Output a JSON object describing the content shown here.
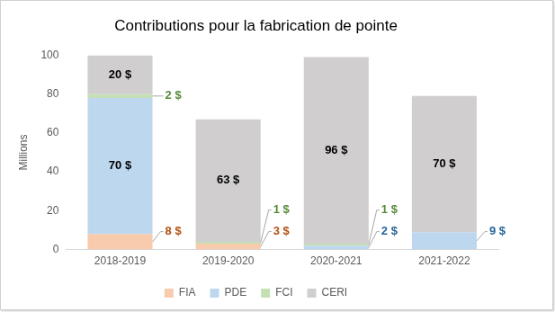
{
  "chart_data": {
    "type": "bar",
    "title": "Contributions pour la fabrication de pointe",
    "y_label": "Millions",
    "categories": [
      "2018-2019",
      "2019-2020",
      "2020-2021",
      "2021-2022"
    ],
    "series": [
      {
        "name": "FIA",
        "color": "#f8cbad",
        "values": [
          8,
          3,
          null,
          null
        ],
        "value_labels": [
          "8 $",
          "3 $",
          null,
          null
        ]
      },
      {
        "name": "PDE",
        "color": "#bdd7ee",
        "values": [
          70,
          null,
          2,
          9
        ],
        "value_labels": [
          "70 $",
          null,
          "2 $",
          "9 $"
        ]
      },
      {
        "name": "FCI",
        "color": "#c5e0b4",
        "values": [
          2,
          1,
          1,
          null
        ],
        "value_labels": [
          "2 $",
          "1 $",
          "1 $",
          null
        ]
      },
      {
        "name": "CERI",
        "color": "#d0cece",
        "values": [
          20,
          63,
          96,
          70
        ],
        "value_labels": [
          "20 $",
          "63 $",
          "96 $",
          "70 $"
        ]
      }
    ],
    "ylim": [
      0,
      100
    ],
    "yticks": [
      0,
      20,
      40,
      60,
      80,
      100
    ],
    "stacked": true,
    "data_labels": true,
    "grid": false,
    "legend": "bottom"
  }
}
